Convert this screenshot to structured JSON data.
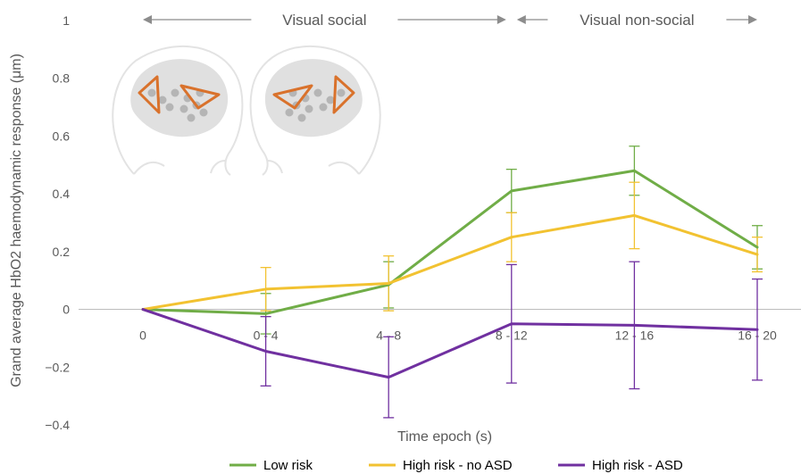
{
  "chart_data": {
    "type": "line",
    "ylabel": "Grand average HbO2 haemodynamic response (μm)",
    "xlabel": "Time epoch  (s)",
    "categories": [
      "0",
      "0 - 4",
      "4 - 8",
      "8 - 12",
      "12 - 16",
      "16 - 20"
    ],
    "ylim": [
      -0.4,
      1.0
    ],
    "yticks": [
      "1",
      "0.8",
      "0.6",
      "0.4",
      "0.2",
      "0",
      "−0.2",
      "−0.4"
    ],
    "grid": false,
    "legend_position": "bottom",
    "phases": [
      {
        "label": "Visual social",
        "from": "0",
        "to": "8 - 12"
      },
      {
        "label": "Visual non-social",
        "from": "8 - 12",
        "to": "16 - 20"
      }
    ],
    "series": [
      {
        "name": "Low risk",
        "color": "#70AD47",
        "values": [
          0,
          -0.015,
          0.085,
          0.41,
          0.48,
          0.215
        ],
        "errors": [
          0,
          0.07,
          0.08,
          0.075,
          0.085,
          0.075
        ]
      },
      {
        "name": "High risk - no ASD",
        "color": "#F2C231",
        "values": [
          0,
          0.07,
          0.09,
          0.25,
          0.325,
          0.19
        ],
        "errors": [
          0,
          0.075,
          0.095,
          0.085,
          0.115,
          0.06
        ]
      },
      {
        "name": "High risk - ASD",
        "color": "#7030A0",
        "values": [
          0,
          -0.145,
          -0.235,
          -0.05,
          -0.055,
          -0.07
        ],
        "errors": [
          0,
          0.12,
          0.14,
          0.205,
          0.22,
          0.175
        ]
      }
    ]
  }
}
